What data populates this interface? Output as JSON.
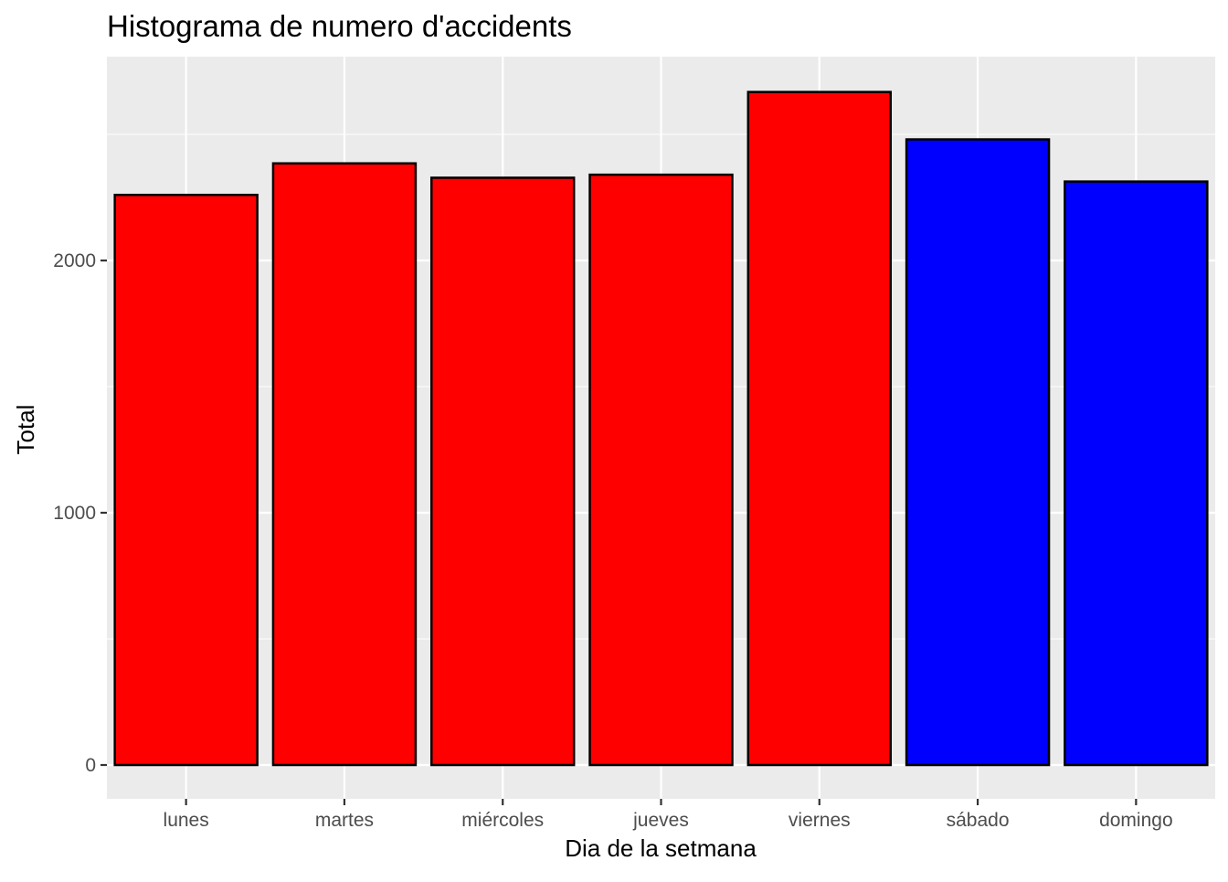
{
  "chart_data": {
    "type": "bar",
    "title": "Histograma de numero d'accidents",
    "xlabel": "Dia de la setmana",
    "ylabel": "Total",
    "categories": [
      "lunes",
      "martes",
      "miércoles",
      "jueves",
      "viernes",
      "sábado",
      "domingo"
    ],
    "values": [
      2260,
      2385,
      2328,
      2340,
      2668,
      2480,
      2313
    ],
    "bar_colors": [
      "#ff0000",
      "#ff0000",
      "#ff0000",
      "#ff0000",
      "#ff0000",
      "#0000ff",
      "#0000ff"
    ],
    "bar_outline_color": "#000000",
    "panel_background": "#ebebeb",
    "gridline_color": "#ffffff",
    "grid": true,
    "legend": false,
    "ylim": [
      -130,
      2800
    ],
    "yticks": [
      0,
      1000,
      2000
    ],
    "yticks_labels": [
      "0",
      "1000",
      "2000"
    ],
    "ygrid_minor": [
      500,
      1500,
      2500
    ]
  }
}
